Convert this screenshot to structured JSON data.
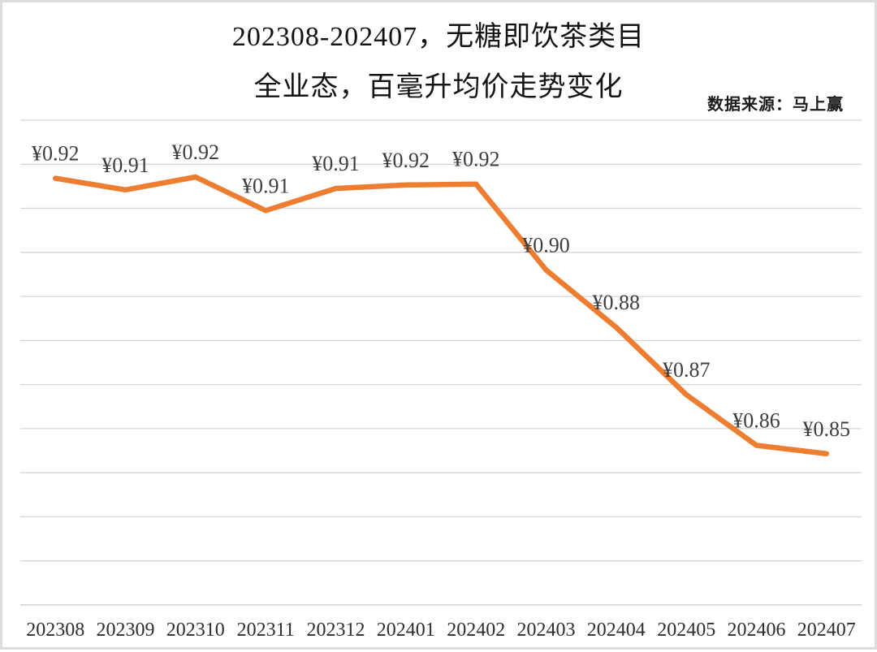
{
  "page": {
    "background_color": "#ffffff",
    "frame_color": "#dcdcdc"
  },
  "header": {
    "title_line1": "202308-202407，无糖即饮茶类目",
    "title_line2": "全业态，百毫升均价走势变化",
    "source": "数据来源：马上赢"
  },
  "chart_data": {
    "type": "line",
    "title": "202308-202407，无糖即饮茶类目 全业态，百毫升均价走势变化",
    "source": "数据来源：马上赢",
    "xlabel": "",
    "ylabel": "",
    "categories": [
      "202308",
      "202309",
      "202310",
      "202311",
      "202312",
      "202401",
      "202402",
      "202403",
      "202404",
      "202405",
      "202406",
      "202407"
    ],
    "values": [
      0.92,
      0.91,
      0.92,
      0.91,
      0.91,
      0.92,
      0.92,
      0.9,
      0.88,
      0.87,
      0.86,
      0.85
    ],
    "point_labels": [
      "¥0.92",
      "¥0.91",
      "¥0.92",
      "¥0.91",
      "¥0.91",
      "¥0.92",
      "¥0.92",
      "¥0.90",
      "¥0.88",
      "¥0.87",
      "¥0.86",
      "¥0.85"
    ],
    "values_precise_estimated": [
      0.9168,
      0.9142,
      0.9171,
      0.9095,
      0.9145,
      0.9153,
      0.9155,
      0.896,
      0.883,
      0.8677,
      0.8562,
      0.8543
    ],
    "ylim": [
      0.82,
      0.93
    ],
    "gridline_step": 0.01,
    "grid": "horizontal-only",
    "legend": false,
    "y_axis_labels_visible": false,
    "line_color": "#ED7D31",
    "gridline_color": "#d6d6d6",
    "axis_line_color": "#c9c9c9",
    "label_color": "#3d3d3d",
    "tick_label_color": "#2e2e2e"
  }
}
